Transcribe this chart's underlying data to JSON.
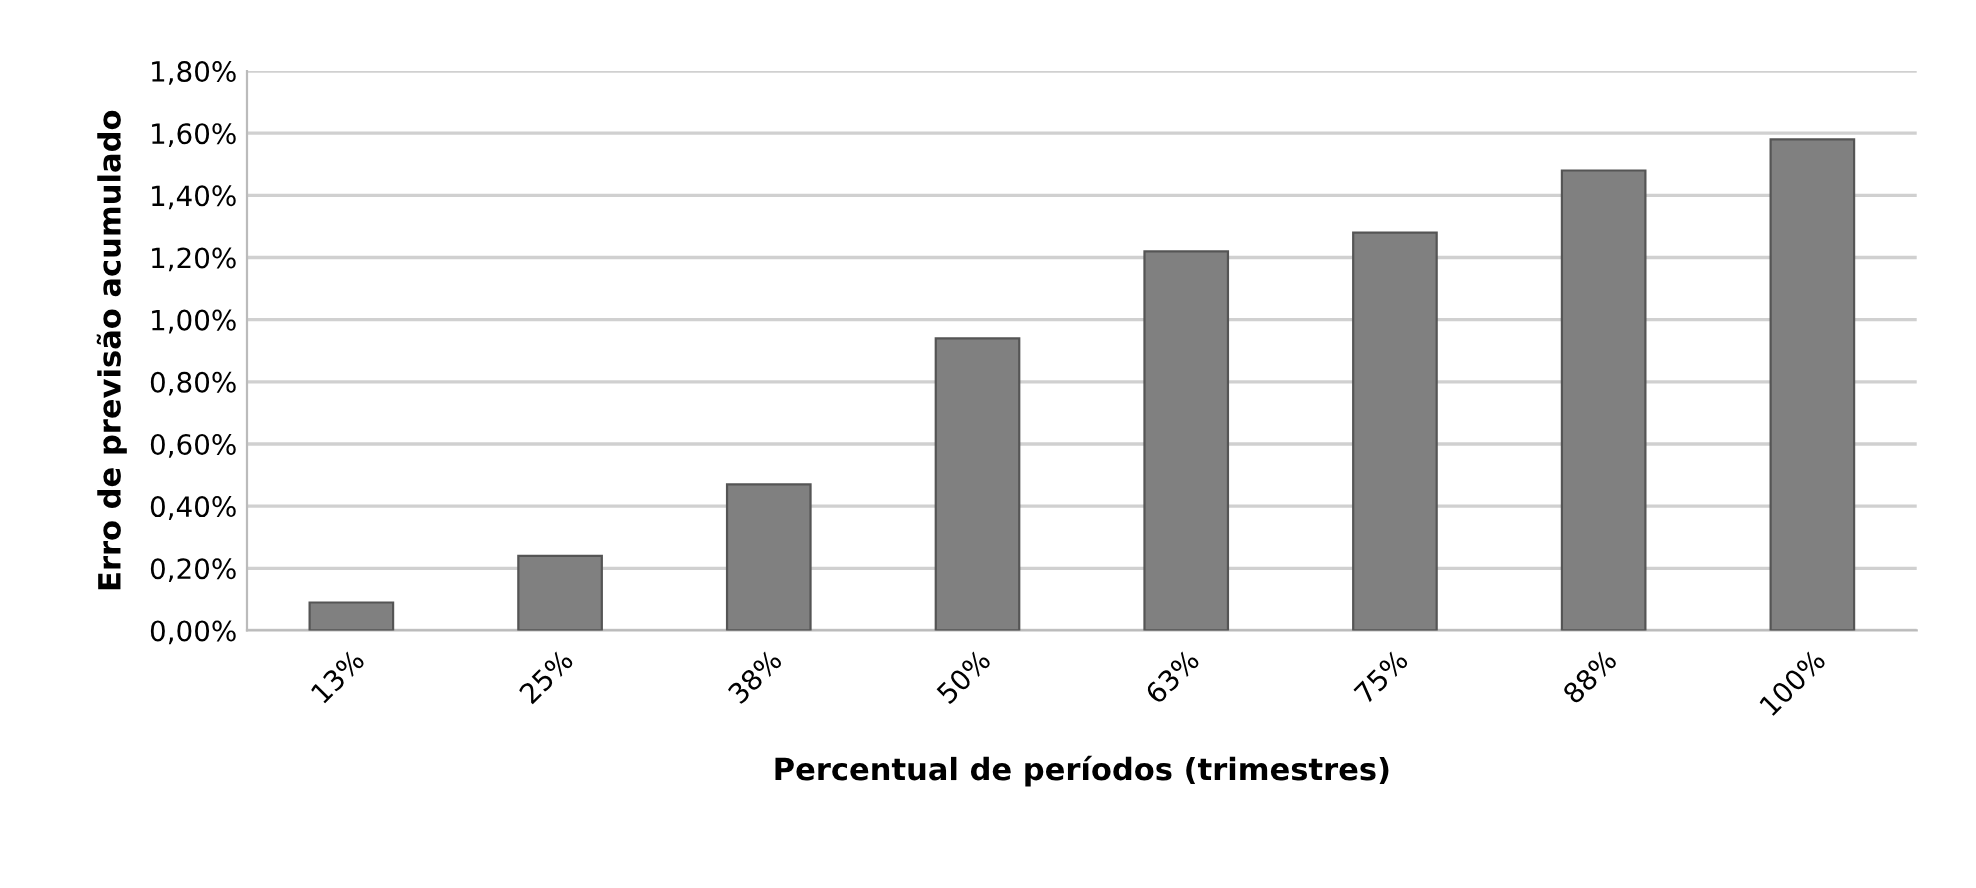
{
  "chart_data": {
    "type": "bar",
    "xlabel": "Percentual de períodos (trimestres)",
    "ylabel": "Erro de previsão acumulado",
    "categories": [
      "13%",
      "25%",
      "38%",
      "50%",
      "63%",
      "75%",
      "88%",
      "100%"
    ],
    "values": [
      0.09,
      0.24,
      0.47,
      0.94,
      1.22,
      1.28,
      1.48,
      1.58
    ],
    "color": "#808080",
    "ylim": [
      0,
      1.8
    ],
    "yticks": [
      {
        "value": 0,
        "label": "0,00%"
      },
      {
        "value": 0.2,
        "label": "0,20%"
      },
      {
        "value": 0.4,
        "label": "0,40%"
      },
      {
        "value": 0.6,
        "label": "0,60%"
      },
      {
        "value": 0.8,
        "label": "0,80%"
      },
      {
        "value": 1.0,
        "label": "1,00%"
      },
      {
        "value": 1.2,
        "label": "1,20%"
      },
      {
        "value": 1.4,
        "label": "1,40%"
      },
      {
        "value": 1.6,
        "label": "1,60%"
      },
      {
        "value": 1.8,
        "label": "1,80%"
      }
    ],
    "grid": "y"
  }
}
